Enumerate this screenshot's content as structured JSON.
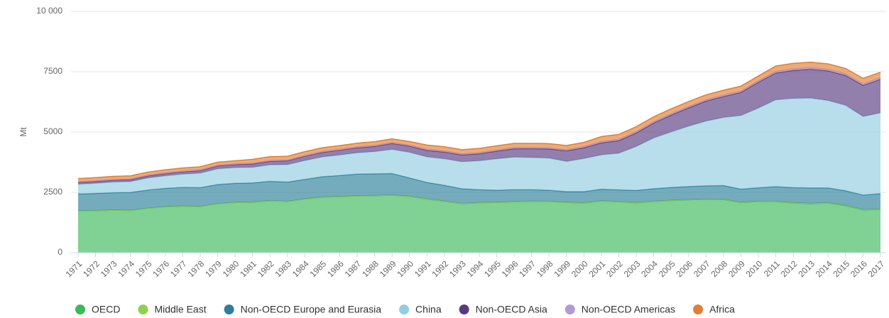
{
  "chart_data": {
    "type": "stacked_area",
    "y_label": "Mt",
    "ylim": [
      0,
      10000
    ],
    "yticks": [
      0,
      2500,
      5000,
      7500,
      {
        "value": 10000,
        "label": "10 000"
      }
    ],
    "grid": true,
    "legend": "bottom",
    "categories": [
      "1971",
      "1972",
      "1973",
      "1974",
      "1975",
      "1976",
      "1977",
      "1978",
      "1979",
      "1980",
      "1981",
      "1982",
      "1983",
      "1984",
      "1985",
      "1986",
      "1987",
      "1988",
      "1989",
      "1990",
      "1991",
      "1992",
      "1993",
      "1994",
      "1995",
      "1996",
      "1997",
      "1998",
      "1999",
      "2000",
      "2001",
      "2002",
      "2003",
      "2004",
      "2005",
      "2006",
      "2007",
      "2008",
      "2009",
      "2010",
      "2011",
      "2012",
      "2013",
      "2014",
      "2015",
      "2016",
      "2017"
    ],
    "series": [
      {
        "name": "OECD",
        "color": "#3cb95a",
        "values": [
          1730,
          1740,
          1760,
          1750,
          1840,
          1900,
          1930,
          1910,
          2030,
          2080,
          2090,
          2150,
          2120,
          2220,
          2300,
          2320,
          2350,
          2360,
          2380,
          2330,
          2220,
          2130,
          2030,
          2070,
          2080,
          2110,
          2130,
          2120,
          2080,
          2060,
          2140,
          2110,
          2070,
          2120,
          2160,
          2190,
          2210,
          2200,
          2080,
          2120,
          2120,
          2060,
          2030,
          2060,
          1950,
          1770,
          1800
        ]
      },
      {
        "name": "Middle East",
        "color": "#8fd14f",
        "values": [
          5,
          5,
          5,
          5,
          5,
          5,
          5,
          5,
          5,
          5,
          8,
          8,
          8,
          8,
          8,
          8,
          8,
          8,
          8,
          8,
          10,
          10,
          10,
          10,
          10,
          10,
          10,
          10,
          10,
          10,
          12,
          12,
          12,
          12,
          12,
          12,
          12,
          12,
          12,
          12,
          15,
          15,
          15,
          15,
          15,
          15,
          15
        ]
      },
      {
        "name": "Non-OECD Europe and Eurasia",
        "color": "#2b7f99",
        "values": [
          700,
          710,
          720,
          740,
          750,
          760,
          770,
          780,
          790,
          790,
          790,
          800,
          800,
          810,
          840,
          870,
          900,
          900,
          890,
          760,
          680,
          650,
          610,
          530,
          500,
          490,
          470,
          460,
          440,
          460,
          480,
          480,
          500,
          520,
          530,
          540,
          550,
          570,
          540,
          560,
          600,
          620,
          640,
          610,
          600,
          600,
          630
        ]
      },
      {
        "name": "China",
        "color": "#92cde2",
        "values": [
          400,
          420,
          440,
          450,
          500,
          520,
          550,
          600,
          650,
          650,
          650,
          680,
          720,
          780,
          820,
          850,
          880,
          920,
          1000,
          1060,
          1060,
          1100,
          1120,
          1200,
          1300,
          1350,
          1330,
          1330,
          1250,
          1370,
          1420,
          1520,
          1820,
          2100,
          2300,
          2500,
          2680,
          2820,
          3050,
          3300,
          3600,
          3700,
          3720,
          3620,
          3540,
          3260,
          3350
        ]
      },
      {
        "name": "Non-OECD Asia",
        "color": "#573b7e",
        "values": [
          80,
          80,
          80,
          85,
          90,
          95,
          100,
          110,
          120,
          130,
          140,
          150,
          160,
          180,
          190,
          200,
          210,
          220,
          250,
          260,
          270,
          280,
          280,
          290,
          320,
          350,
          370,
          380,
          440,
          450,
          500,
          520,
          560,
          620,
          700,
          760,
          830,
          870,
          960,
          1070,
          1110,
          1160,
          1200,
          1230,
          1240,
          1290,
          1390
        ]
      },
      {
        "name": "Non-OECD Americas",
        "color": "#b29bd3",
        "values": [
          25,
          25,
          25,
          25,
          25,
          25,
          25,
          25,
          25,
          25,
          30,
          30,
          30,
          30,
          30,
          30,
          30,
          30,
          30,
          30,
          40,
          40,
          40,
          40,
          40,
          40,
          40,
          40,
          40,
          40,
          50,
          50,
          50,
          50,
          50,
          50,
          50,
          50,
          50,
          50,
          60,
          60,
          60,
          60,
          60,
          60,
          60
        ]
      },
      {
        "name": "Africa",
        "color": "#e07e34",
        "values": [
          130,
          130,
          130,
          130,
          130,
          130,
          130,
          130,
          130,
          130,
          160,
          160,
          160,
          160,
          160,
          160,
          160,
          160,
          160,
          160,
          180,
          180,
          180,
          180,
          180,
          180,
          180,
          180,
          180,
          180,
          210,
          210,
          210,
          210,
          210,
          210,
          210,
          210,
          210,
          210,
          230,
          230,
          230,
          230,
          230,
          230,
          230
        ]
      }
    ]
  }
}
